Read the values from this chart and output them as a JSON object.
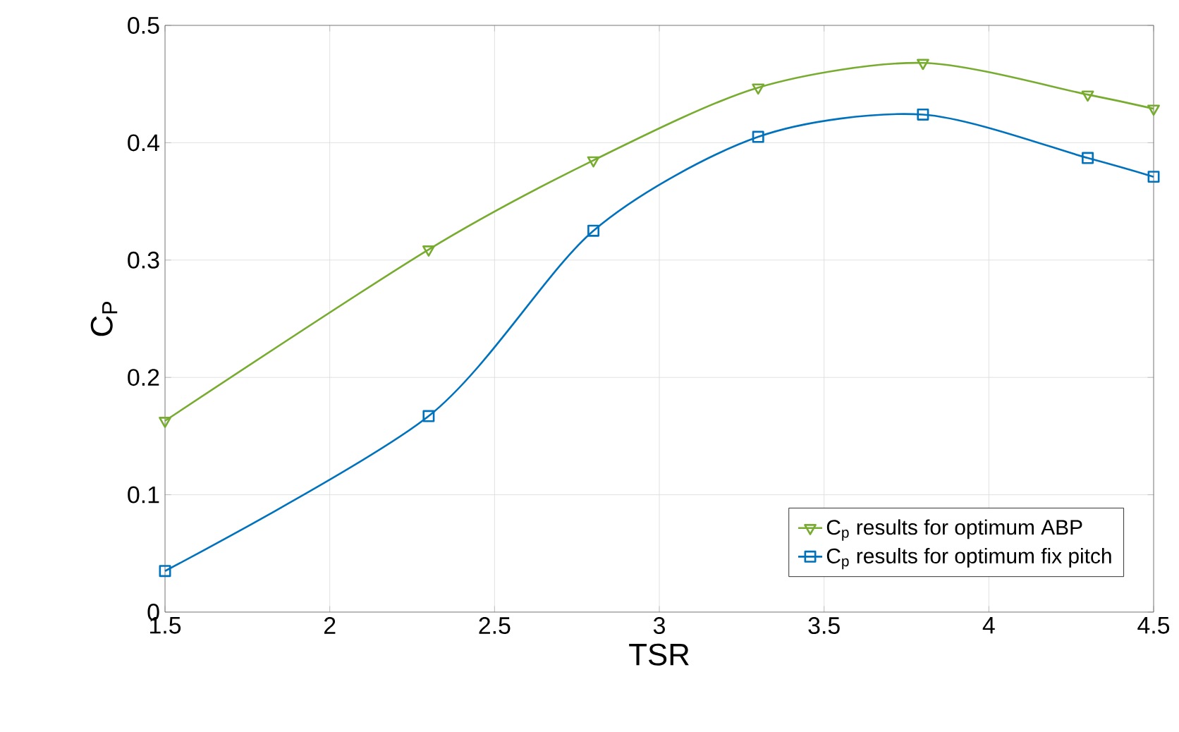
{
  "chart_data": {
    "type": "line",
    "xlabel": "TSR",
    "ylabel": "C$_{P}$",
    "xlim": [
      1.5,
      4.5
    ],
    "xticks": [
      1.5,
      2,
      2.5,
      3,
      3.5,
      4,
      4.5
    ],
    "ylim": [
      0,
      0.5
    ],
    "yticks": [
      0,
      0.1,
      0.2,
      0.3,
      0.4,
      0.5
    ],
    "grid": true,
    "legend": "bottom right",
    "series": [
      {
        "name": "C$_{p}$ results for optimum ABP",
        "color": "#77ac30",
        "marker": "triangle",
        "x": [
          1.5,
          2.3,
          2.8,
          3.3,
          3.8,
          4.3,
          4.5
        ],
        "values": [
          0.163,
          0.309,
          0.385,
          0.447,
          0.468,
          0.441,
          0.429
        ]
      },
      {
        "name": "C$_{p}$ results for optimum fix pitch",
        "color": "#0072bd",
        "marker": "square",
        "x": [
          1.5,
          2.3,
          2.8,
          3.3,
          3.8,
          4.3,
          4.5
        ],
        "values": [
          0.035,
          0.167,
          0.325,
          0.405,
          0.424,
          0.387,
          0.371
        ]
      }
    ]
  }
}
